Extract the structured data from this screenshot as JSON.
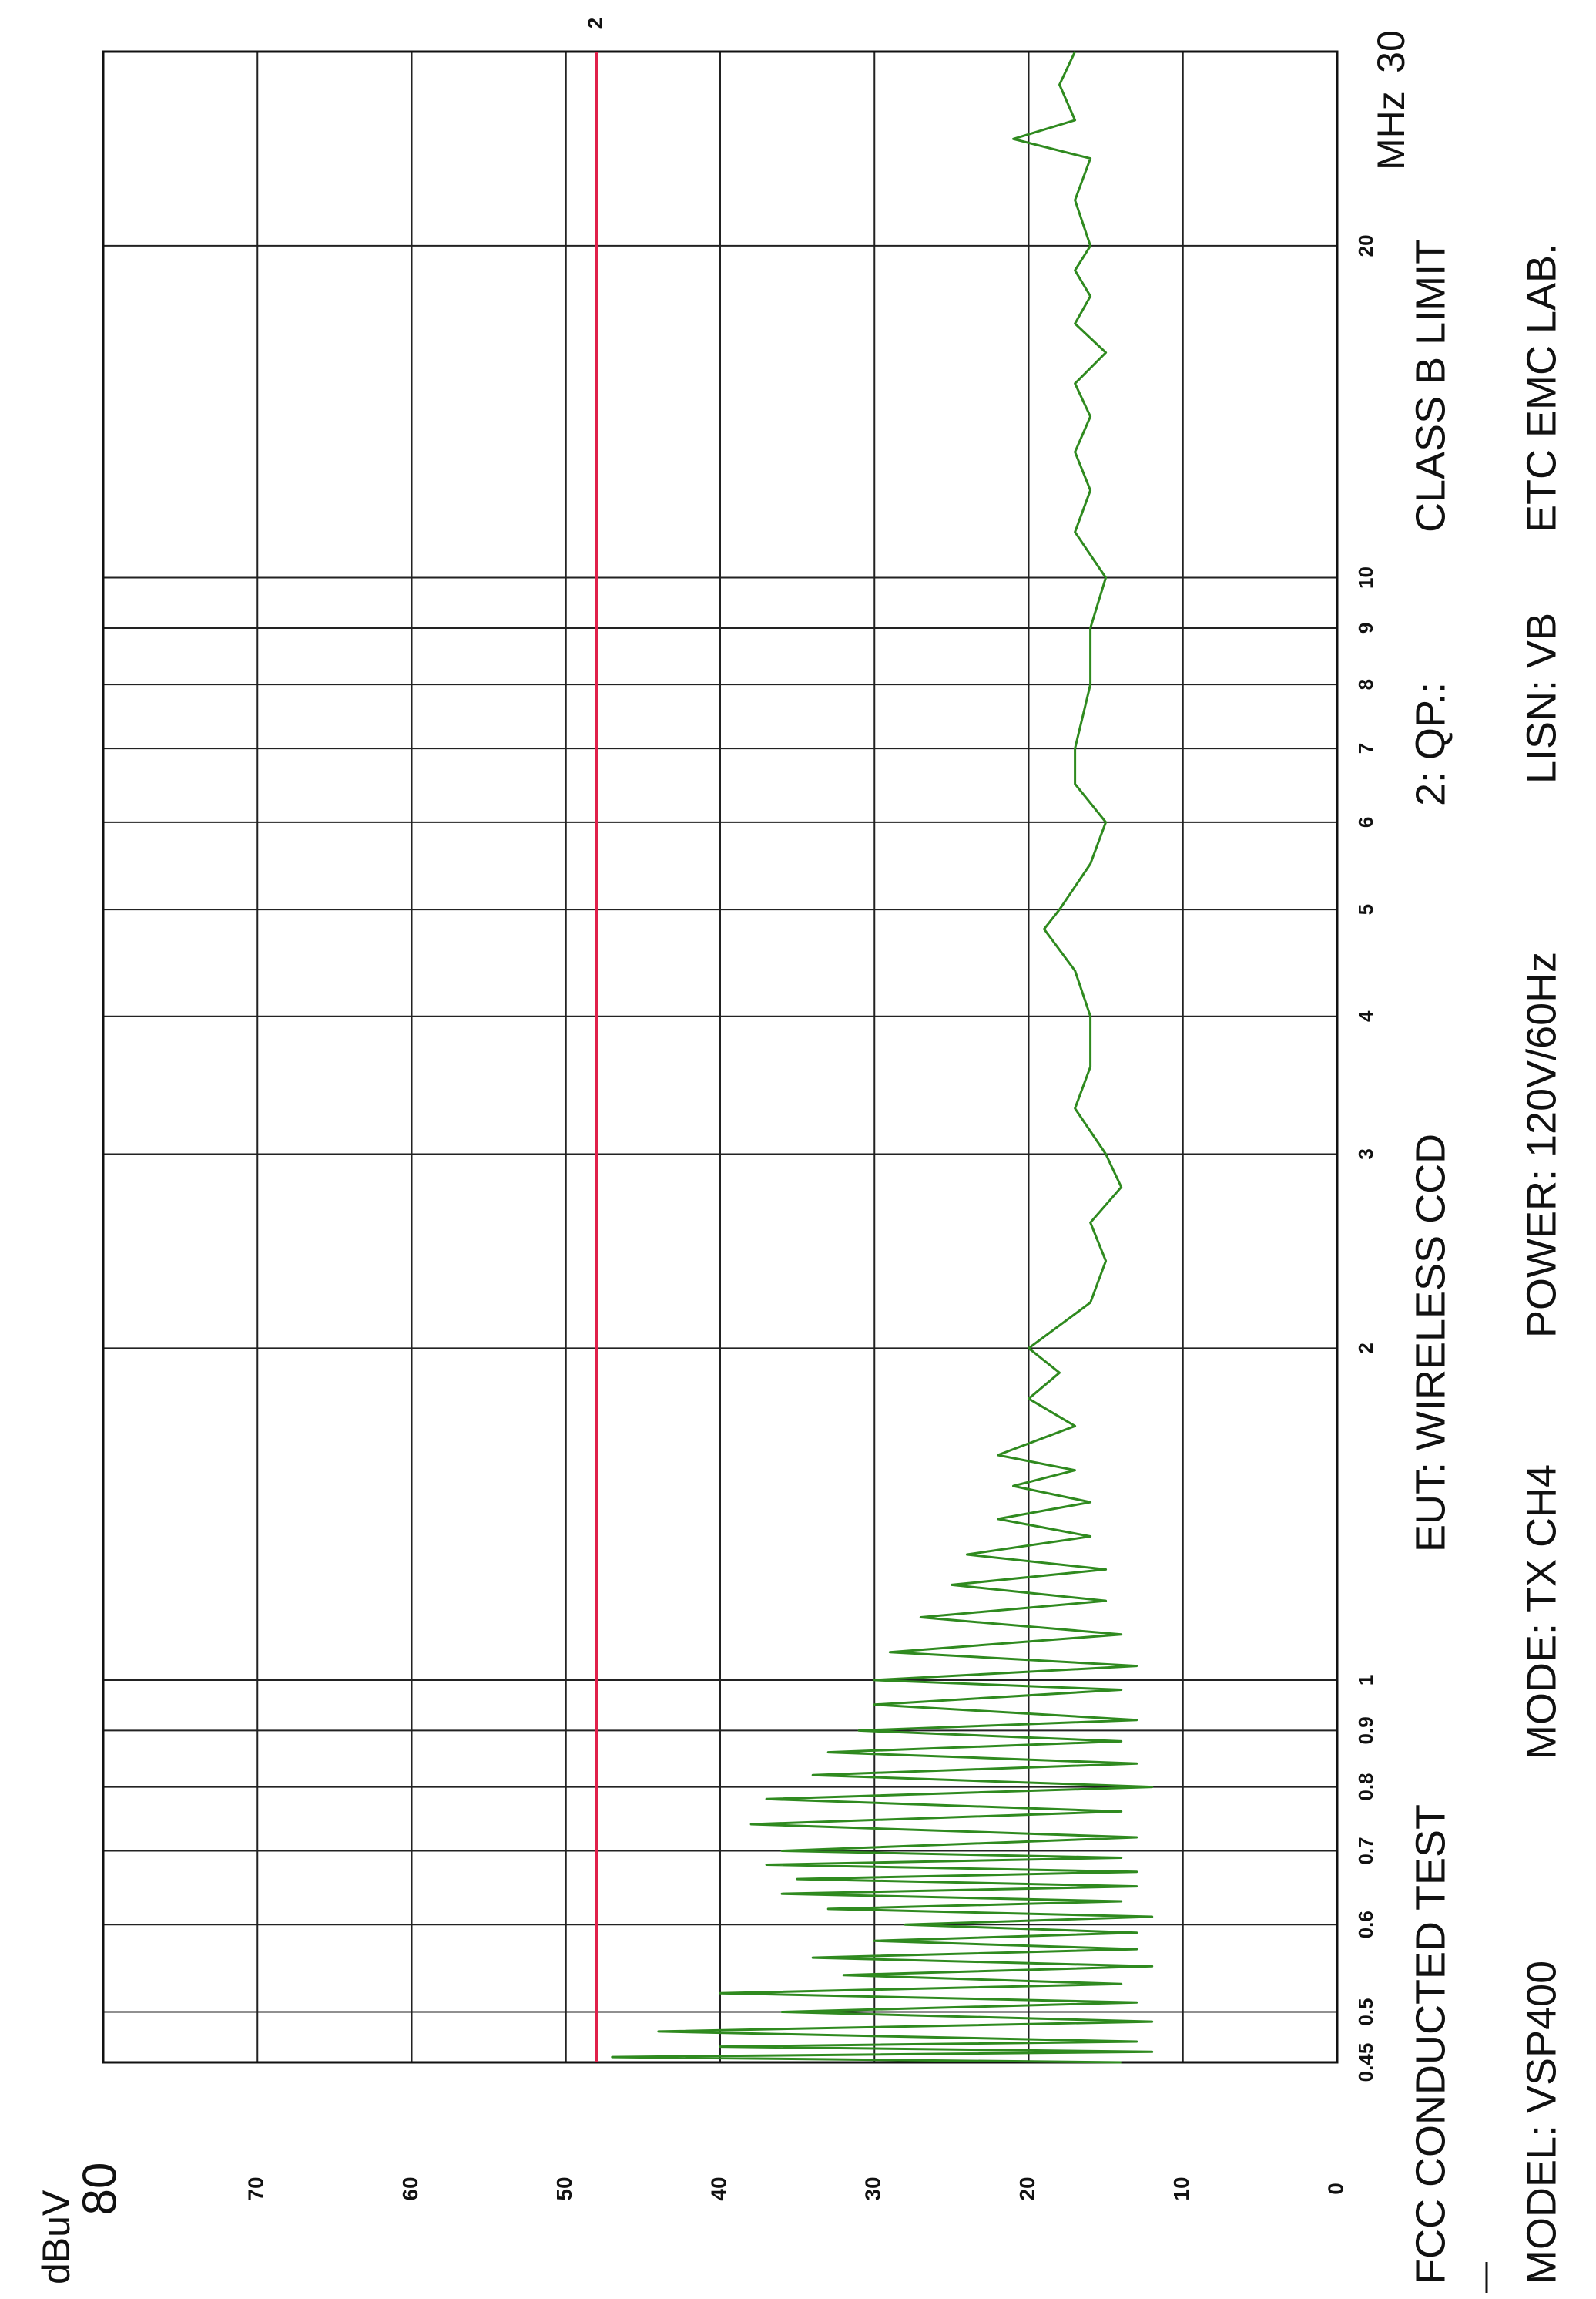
{
  "chart_data": {
    "type": "line",
    "ylabel": "dBuV",
    "xlabel": "MHz",
    "xscale": "log",
    "grid": true,
    "xlim": [
      0.45,
      30
    ],
    "xticks": [
      0.45,
      0.5,
      0.6,
      0.7,
      0.8,
      0.9,
      1,
      2,
      3,
      4,
      5,
      6,
      7,
      8,
      9,
      10,
      20,
      30
    ],
    "ylim": [
      0,
      80
    ],
    "yticks": [
      0,
      10,
      20,
      30,
      40,
      50,
      60,
      70,
      80
    ],
    "limit": {
      "label": "2",
      "value": 48,
      "color": "#e0204a"
    },
    "x": [
      0.45,
      0.455,
      0.46,
      0.465,
      0.47,
      0.48,
      0.49,
      0.5,
      0.51,
      0.52,
      0.53,
      0.54,
      0.55,
      0.56,
      0.57,
      0.58,
      0.59,
      0.6,
      0.61,
      0.62,
      0.63,
      0.64,
      0.65,
      0.66,
      0.67,
      0.68,
      0.69,
      0.7,
      0.72,
      0.74,
      0.76,
      0.78,
      0.8,
      0.82,
      0.84,
      0.86,
      0.88,
      0.9,
      0.92,
      0.95,
      0.98,
      1.0,
      1.03,
      1.06,
      1.1,
      1.14,
      1.18,
      1.22,
      1.26,
      1.3,
      1.35,
      1.4,
      1.45,
      1.5,
      1.55,
      1.6,
      1.7,
      1.8,
      1.9,
      2.0,
      2.2,
      2.4,
      2.6,
      2.8,
      3.0,
      3.3,
      3.6,
      4.0,
      4.4,
      4.8,
      5.0,
      5.5,
      6.0,
      6.5,
      7.0,
      8.0,
      9.0,
      10,
      11,
      12,
      13,
      14,
      15,
      16,
      17,
      18,
      19,
      20,
      22,
      24,
      25,
      26,
      28,
      30
    ],
    "series": [
      {
        "color": "#2f8a1f",
        "values": [
          14,
          47,
          12,
          40,
          13,
          44,
          12,
          36,
          13,
          40,
          14,
          32,
          12,
          34,
          13,
          30,
          13,
          28,
          12,
          33,
          14,
          36,
          13,
          35,
          13,
          37,
          14,
          36,
          13,
          38,
          14,
          37,
          12,
          34,
          13,
          33,
          14,
          31,
          13,
          30,
          14,
          30,
          13,
          29,
          14,
          27,
          15,
          25,
          15,
          24,
          16,
          22,
          16,
          21,
          17,
          22,
          17,
          20,
          18,
          20,
          16,
          15,
          16,
          14,
          15,
          17,
          16,
          16,
          17,
          19,
          18,
          16,
          15,
          17,
          17,
          16,
          16,
          15,
          17,
          16,
          17,
          16,
          17,
          15,
          17,
          16,
          17,
          16,
          17,
          16,
          21,
          17,
          18,
          17
        ]
      }
    ],
    "annotations": [
      "FCC CONDUCTED TEST",
      "MODEL: VSP400",
      "EUT: WIRELESS CCD",
      "MODE: TX CH4",
      "POWER: 120V/60Hz",
      "2: QP.:",
      "LISN: VB",
      "CLASS B LIMIT",
      "ETC EMC LAB."
    ]
  }
}
